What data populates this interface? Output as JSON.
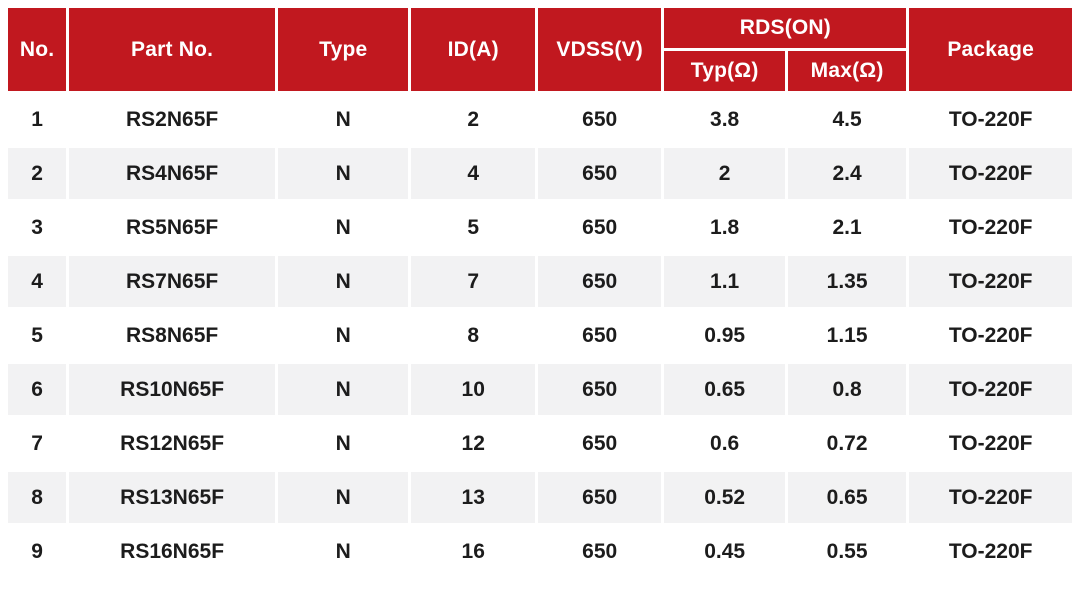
{
  "header": {
    "no": "No.",
    "part_no": "Part No.",
    "type": "Type",
    "id_a": "ID(A)",
    "vdss": "VDSS(V)",
    "rds_on": "RDS(ON)",
    "typ": "Typ(Ω)",
    "max": "Max(Ω)",
    "package": "Package"
  },
  "rows": [
    {
      "no": "1",
      "part_no": "RS2N65F",
      "type": "N",
      "id_a": "2",
      "vdss": "650",
      "rds_typ": "3.8",
      "rds_max": "4.5",
      "package": "TO-220F"
    },
    {
      "no": "2",
      "part_no": "RS4N65F",
      "type": "N",
      "id_a": "4",
      "vdss": "650",
      "rds_typ": "2",
      "rds_max": "2.4",
      "package": "TO-220F"
    },
    {
      "no": "3",
      "part_no": "RS5N65F",
      "type": "N",
      "id_a": "5",
      "vdss": "650",
      "rds_typ": "1.8",
      "rds_max": "2.1",
      "package": "TO-220F"
    },
    {
      "no": "4",
      "part_no": "RS7N65F",
      "type": "N",
      "id_a": "7",
      "vdss": "650",
      "rds_typ": "1.1",
      "rds_max": "1.35",
      "package": "TO-220F"
    },
    {
      "no": "5",
      "part_no": "RS8N65F",
      "type": "N",
      "id_a": "8",
      "vdss": "650",
      "rds_typ": "0.95",
      "rds_max": "1.15",
      "package": "TO-220F"
    },
    {
      "no": "6",
      "part_no": "RS10N65F",
      "type": "N",
      "id_a": "10",
      "vdss": "650",
      "rds_typ": "0.65",
      "rds_max": "0.8",
      "package": "TO-220F"
    },
    {
      "no": "7",
      "part_no": "RS12N65F",
      "type": "N",
      "id_a": "12",
      "vdss": "650",
      "rds_typ": "0.6",
      "rds_max": "0.72",
      "package": "TO-220F"
    },
    {
      "no": "8",
      "part_no": "RS13N65F",
      "type": "N",
      "id_a": "13",
      "vdss": "650",
      "rds_typ": "0.52",
      "rds_max": "0.65",
      "package": "TO-220F"
    },
    {
      "no": "9",
      "part_no": "RS16N65F",
      "type": "N",
      "id_a": "16",
      "vdss": "650",
      "rds_typ": "0.45",
      "rds_max": "0.55",
      "package": "TO-220F"
    }
  ],
  "colors": {
    "header_bg": "#c1181f",
    "header_text": "#ffffff",
    "row_alt_bg": "#f2f2f3",
    "body_text": "#1c1c1c",
    "page_bg": "#ffffff"
  }
}
